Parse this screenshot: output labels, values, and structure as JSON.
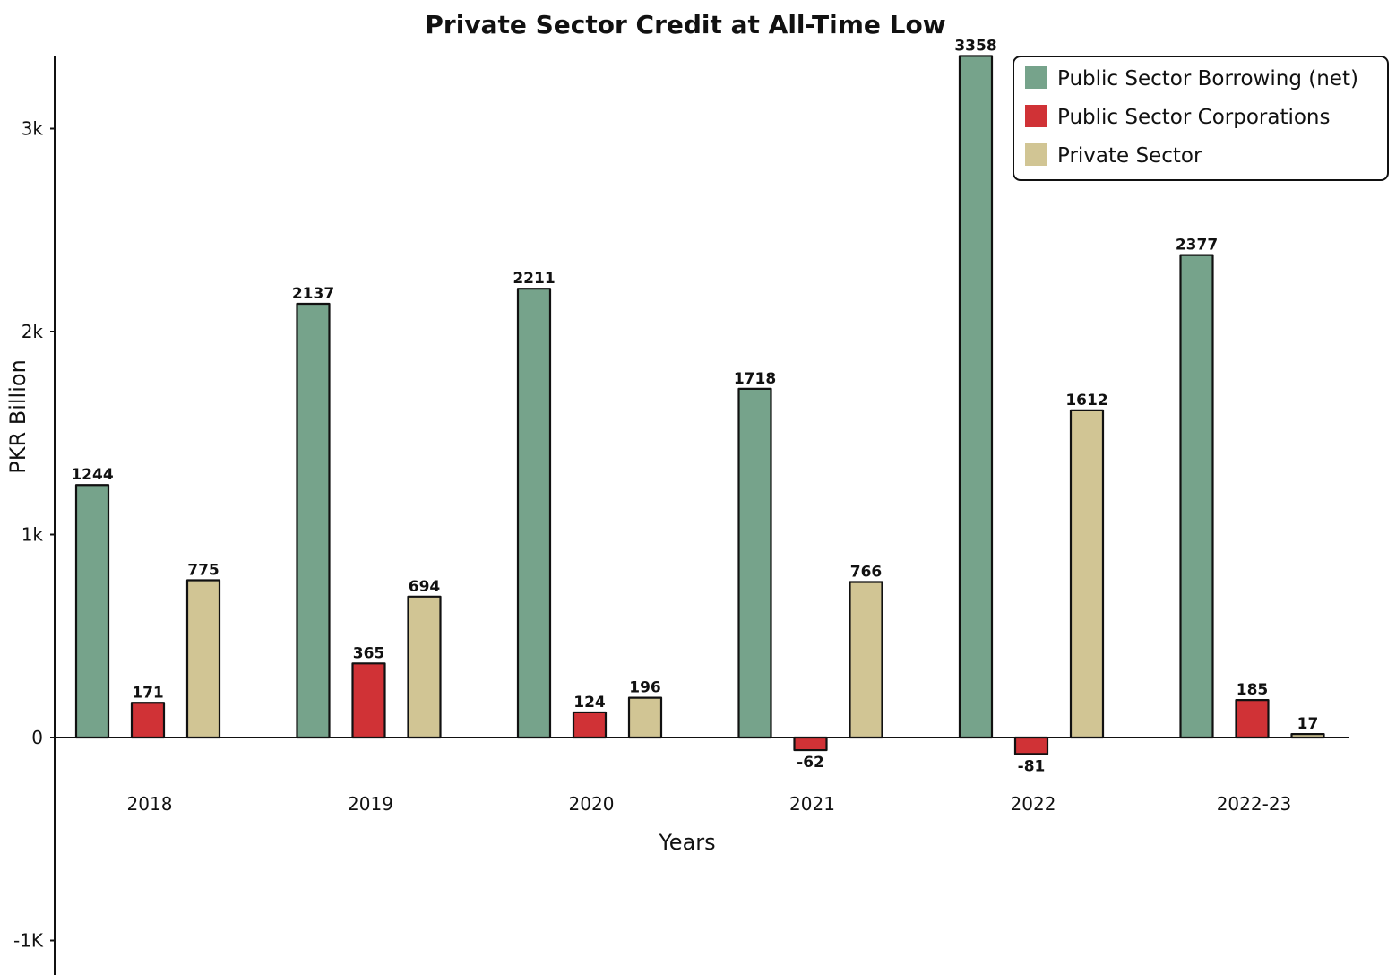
{
  "chart_data": {
    "type": "bar",
    "title": "Private Sector Credit at All-Time Low",
    "xlabel": "Years",
    "ylabel": "PKR Billion",
    "categories": [
      "2018",
      "2019",
      "2020",
      "2021",
      "2022",
      "2022-23"
    ],
    "series": [
      {
        "name": "Public Sector Borrowing (net)",
        "color": "#76a38b",
        "values": [
          1244,
          2137,
          2211,
          1718,
          3358,
          2377
        ]
      },
      {
        "name": "Public Sector Corporations",
        "color": "#d03236",
        "values": [
          171,
          365,
          124,
          -62,
          -81,
          185
        ]
      },
      {
        "name": "Private Sector",
        "color": "#d1c594",
        "values": [
          775,
          694,
          196,
          766,
          1612,
          17
        ]
      }
    ],
    "yticks": [
      {
        "value": -1000,
        "label": "-1K"
      },
      {
        "value": 0,
        "label": "0"
      },
      {
        "value": 1000,
        "label": "1k"
      },
      {
        "value": 2000,
        "label": "2k"
      },
      {
        "value": 3000,
        "label": "3k"
      }
    ],
    "ylim": [
      -1150,
      3380
    ],
    "grid": false,
    "legend_position": "top-right"
  }
}
